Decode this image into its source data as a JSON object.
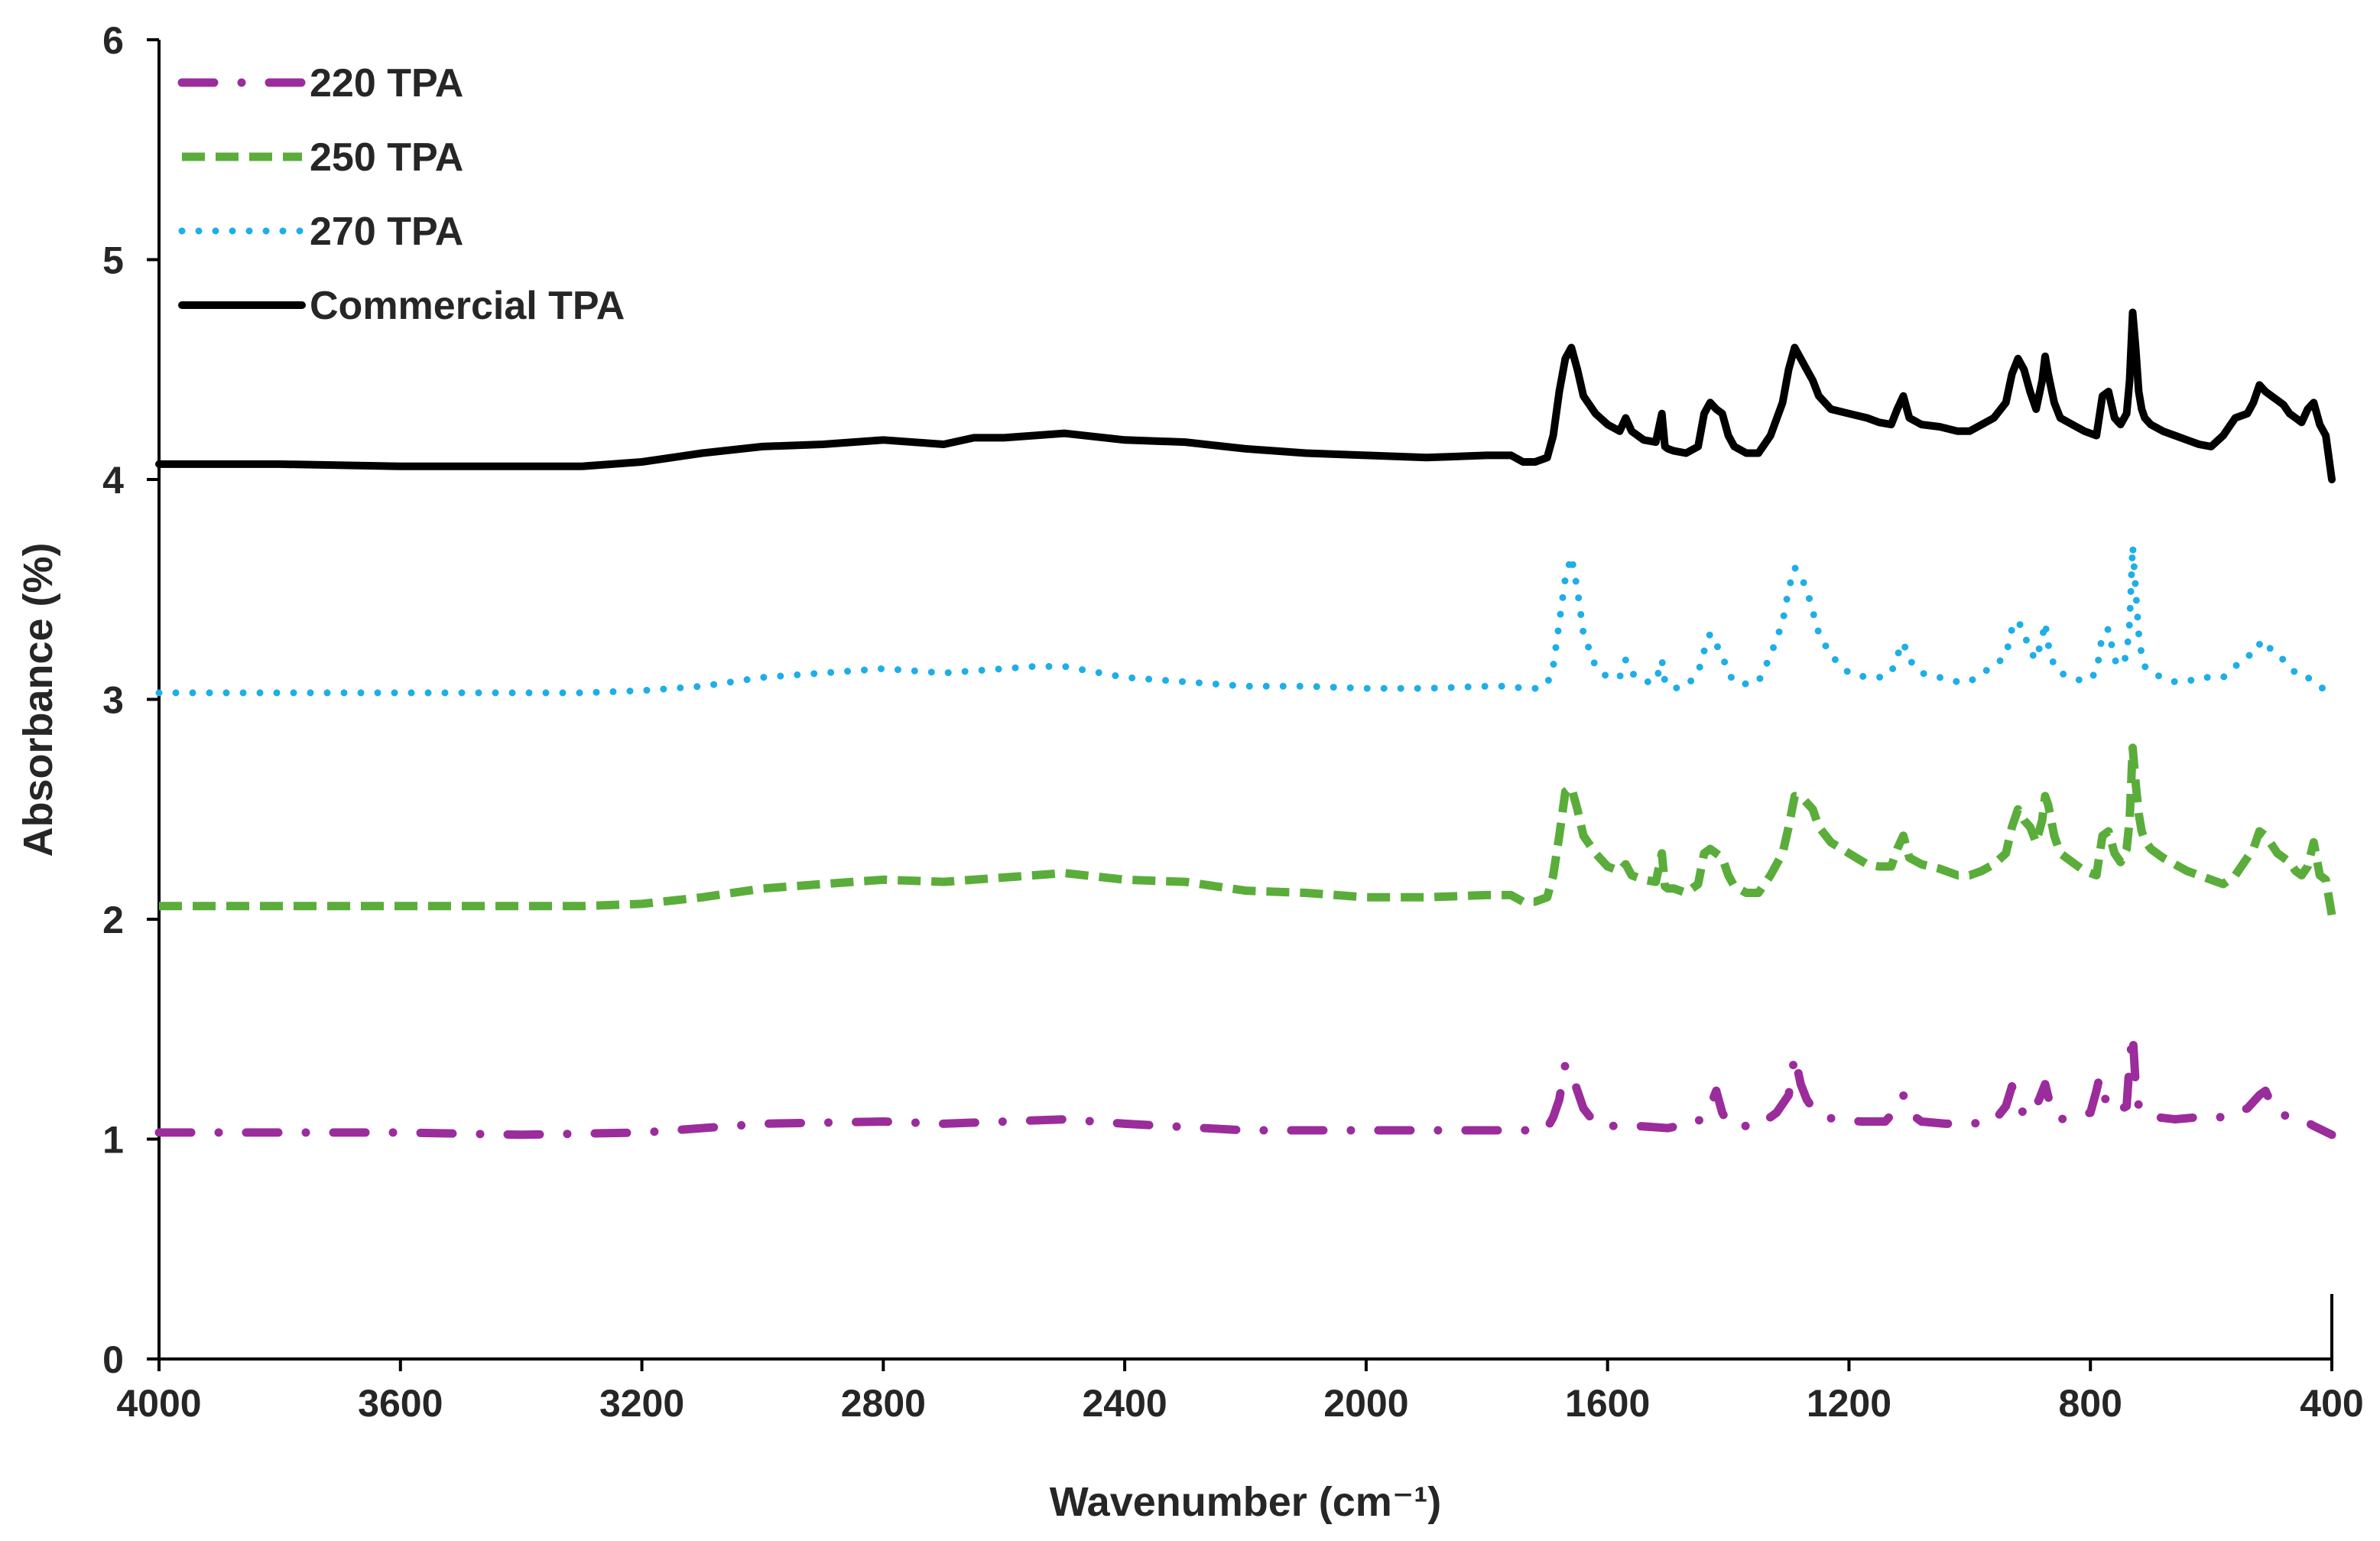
{
  "chart_data": {
    "type": "line",
    "title": "",
    "xlabel": "Wavenumber (cm⁻¹)",
    "ylabel": "Absorbance (%)",
    "xlim": [
      4000,
      400
    ],
    "ylim": [
      0,
      6
    ],
    "x_reversed": true,
    "xticks": [
      "4000",
      "3600",
      "3200",
      "2800",
      "2400",
      "2000",
      "1600",
      "1200",
      "800",
      "400"
    ],
    "xtick_values": [
      4000,
      3600,
      3200,
      2800,
      2400,
      2000,
      1600,
      1200,
      800,
      400
    ],
    "yticks": [
      "0",
      "1",
      "2",
      "3",
      "4",
      "5",
      "6"
    ],
    "ytick_values": [
      0,
      1,
      2,
      3,
      4,
      5,
      6
    ],
    "grid": false,
    "legend_position": "top-left",
    "series": [
      {
        "name": "220 TPA",
        "color": "#9B2C9B",
        "style": "dashdot",
        "x": [
          4000,
          3600,
          3400,
          3200,
          3000,
          2800,
          2700,
          2600,
          2500,
          2400,
          2200,
          2000,
          1800,
          1730,
          1700,
          1690,
          1680,
          1670,
          1660,
          1650,
          1640,
          1620,
          1590,
          1550,
          1500,
          1450,
          1430,
          1420,
          1410,
          1400,
          1380,
          1350,
          1320,
          1300,
          1290,
          1280,
          1270,
          1260,
          1240,
          1220,
          1180,
          1140,
          1120,
          1110,
          1100,
          1080,
          1040,
          1000,
          960,
          940,
          930,
          920,
          900,
          885,
          875,
          865,
          850,
          830,
          800,
          790,
          785,
          775,
          760,
          740,
          735,
          730,
          725,
          720,
          710,
          690,
          660,
          620,
          580,
          560,
          540,
          520,
          510,
          500,
          490,
          470,
          450,
          430,
          400
        ],
        "y": [
          1.03,
          1.03,
          1.02,
          1.03,
          1.07,
          1.08,
          1.07,
          1.08,
          1.09,
          1.07,
          1.04,
          1.04,
          1.04,
          1.04,
          1.05,
          1.1,
          1.18,
          1.34,
          1.3,
          1.22,
          1.14,
          1.07,
          1.06,
          1.06,
          1.05,
          1.08,
          1.15,
          1.22,
          1.12,
          1.07,
          1.06,
          1.06,
          1.12,
          1.2,
          1.38,
          1.25,
          1.18,
          1.14,
          1.1,
          1.09,
          1.08,
          1.08,
          1.14,
          1.2,
          1.12,
          1.08,
          1.07,
          1.07,
          1.08,
          1.15,
          1.24,
          1.14,
          1.1,
          1.18,
          1.25,
          1.14,
          1.09,
          1.1,
          1.12,
          1.22,
          1.28,
          1.18,
          1.12,
          1.15,
          1.35,
          1.48,
          1.25,
          1.15,
          1.12,
          1.1,
          1.09,
          1.1,
          1.1,
          1.12,
          1.14,
          1.2,
          1.22,
          1.16,
          1.12,
          1.1,
          1.09,
          1.06,
          1.02
        ]
      },
      {
        "name": "250 TPA",
        "color": "#5AAD3A",
        "style": "dashed",
        "x": [
          4000,
          3800,
          3600,
          3400,
          3300,
          3200,
          3100,
          3000,
          2900,
          2800,
          2700,
          2600,
          2550,
          2500,
          2400,
          2300,
          2200,
          2100,
          2000,
          1900,
          1800,
          1760,
          1740,
          1720,
          1700,
          1690,
          1680,
          1670,
          1660,
          1650,
          1640,
          1620,
          1600,
          1580,
          1570,
          1560,
          1540,
          1520,
          1510,
          1505,
          1500,
          1490,
          1470,
          1450,
          1440,
          1430,
          1420,
          1410,
          1400,
          1390,
          1370,
          1350,
          1330,
          1310,
          1300,
          1290,
          1280,
          1270,
          1260,
          1250,
          1230,
          1200,
          1170,
          1150,
          1130,
          1120,
          1110,
          1100,
          1080,
          1050,
          1020,
          1000,
          980,
          960,
          940,
          930,
          920,
          910,
          900,
          890,
          880,
          875,
          870,
          860,
          850,
          830,
          810,
          790,
          780,
          770,
          760,
          750,
          740,
          735,
          730,
          725,
          720,
          715,
          710,
          700,
          680,
          660,
          640,
          620,
          600,
          580,
          560,
          540,
          530,
          520,
          510,
          500,
          490,
          480,
          470,
          460,
          450,
          440,
          430,
          420,
          410,
          400
        ],
        "y": [
          2.06,
          2.06,
          2.06,
          2.06,
          2.06,
          2.07,
          2.1,
          2.14,
          2.16,
          2.18,
          2.17,
          2.19,
          2.2,
          2.21,
          2.18,
          2.17,
          2.13,
          2.12,
          2.1,
          2.1,
          2.11,
          2.11,
          2.08,
          2.08,
          2.1,
          2.2,
          2.38,
          2.58,
          2.6,
          2.5,
          2.38,
          2.3,
          2.24,
          2.22,
          2.25,
          2.2,
          2.18,
          2.17,
          2.3,
          2.15,
          2.14,
          2.14,
          2.12,
          2.16,
          2.3,
          2.32,
          2.3,
          2.28,
          2.2,
          2.15,
          2.12,
          2.12,
          2.2,
          2.3,
          2.42,
          2.56,
          2.56,
          2.53,
          2.5,
          2.42,
          2.35,
          2.3,
          2.25,
          2.24,
          2.24,
          2.32,
          2.38,
          2.28,
          2.25,
          2.23,
          2.2,
          2.2,
          2.22,
          2.25,
          2.3,
          2.42,
          2.5,
          2.45,
          2.42,
          2.35,
          2.45,
          2.56,
          2.52,
          2.38,
          2.3,
          2.26,
          2.22,
          2.2,
          2.38,
          2.4,
          2.3,
          2.26,
          2.32,
          2.45,
          2.78,
          2.62,
          2.48,
          2.4,
          2.36,
          2.32,
          2.28,
          2.25,
          2.22,
          2.2,
          2.18,
          2.16,
          2.2,
          2.28,
          2.32,
          2.4,
          2.38,
          2.34,
          2.3,
          2.28,
          2.26,
          2.22,
          2.2,
          2.24,
          2.35,
          2.2,
          2.18,
          2.02
        ]
      },
      {
        "name": "270 TPA",
        "color": "#1EAEE8",
        "style": "dotted",
        "x": [
          4000,
          3800,
          3600,
          3400,
          3300,
          3200,
          3100,
          3000,
          2900,
          2800,
          2700,
          2600,
          2550,
          2500,
          2400,
          2300,
          2200,
          2100,
          2000,
          1900,
          1800,
          1760,
          1740,
          1720,
          1700,
          1690,
          1680,
          1670,
          1660,
          1650,
          1640,
          1620,
          1600,
          1580,
          1570,
          1560,
          1540,
          1520,
          1510,
          1505,
          1500,
          1490,
          1470,
          1450,
          1440,
          1430,
          1420,
          1410,
          1400,
          1390,
          1370,
          1350,
          1330,
          1310,
          1300,
          1290,
          1280,
          1270,
          1260,
          1250,
          1230,
          1200,
          1170,
          1150,
          1130,
          1120,
          1110,
          1100,
          1080,
          1050,
          1020,
          1000,
          980,
          960,
          940,
          930,
          920,
          910,
          900,
          890,
          880,
          875,
          870,
          860,
          850,
          830,
          810,
          790,
          780,
          770,
          760,
          750,
          740,
          735,
          730,
          725,
          720,
          715,
          710,
          700,
          680,
          660,
          640,
          620,
          600,
          580,
          560,
          540,
          530,
          520,
          510,
          500,
          490,
          480,
          470,
          460,
          450,
          440,
          430,
          420,
          410,
          400
        ],
        "y": [
          3.03,
          3.03,
          3.03,
          3.03,
          3.03,
          3.04,
          3.06,
          3.1,
          3.12,
          3.14,
          3.12,
          3.14,
          3.15,
          3.15,
          3.1,
          3.08,
          3.06,
          3.06,
          3.05,
          3.05,
          3.06,
          3.06,
          3.05,
          3.05,
          3.07,
          3.15,
          3.35,
          3.55,
          3.65,
          3.5,
          3.3,
          3.15,
          3.1,
          3.1,
          3.18,
          3.12,
          3.08,
          3.08,
          3.18,
          3.08,
          3.06,
          3.05,
          3.06,
          3.12,
          3.22,
          3.3,
          3.25,
          3.2,
          3.12,
          3.08,
          3.07,
          3.08,
          3.2,
          3.35,
          3.5,
          3.6,
          3.56,
          3.5,
          3.4,
          3.3,
          3.2,
          3.12,
          3.1,
          3.1,
          3.12,
          3.2,
          3.26,
          3.18,
          3.12,
          3.1,
          3.08,
          3.08,
          3.12,
          3.15,
          3.2,
          3.32,
          3.36,
          3.3,
          3.22,
          3.18,
          3.28,
          3.35,
          3.25,
          3.15,
          3.12,
          3.1,
          3.08,
          3.12,
          3.3,
          3.32,
          3.18,
          3.15,
          3.2,
          3.35,
          3.7,
          3.5,
          3.3,
          3.2,
          3.15,
          3.12,
          3.1,
          3.08,
          3.08,
          3.1,
          3.1,
          3.1,
          3.15,
          3.2,
          3.2,
          3.25,
          3.27,
          3.22,
          3.2,
          3.18,
          3.15,
          3.12,
          3.1,
          3.1,
          3.08,
          3.06,
          3.04,
          3.0
        ]
      },
      {
        "name": "Commercial TPA",
        "color": "#000000",
        "style": "solid",
        "x": [
          4000,
          3800,
          3600,
          3400,
          3300,
          3200,
          3100,
          3000,
          2900,
          2800,
          2700,
          2650,
          2600,
          2550,
          2500,
          2400,
          2300,
          2200,
          2100,
          2000,
          1900,
          1800,
          1760,
          1740,
          1720,
          1700,
          1690,
          1680,
          1670,
          1660,
          1650,
          1640,
          1620,
          1600,
          1580,
          1570,
          1560,
          1540,
          1520,
          1510,
          1505,
          1500,
          1490,
          1470,
          1450,
          1440,
          1430,
          1420,
          1410,
          1400,
          1390,
          1370,
          1350,
          1330,
          1310,
          1300,
          1290,
          1280,
          1270,
          1260,
          1250,
          1230,
          1200,
          1170,
          1150,
          1130,
          1120,
          1110,
          1100,
          1080,
          1050,
          1020,
          1000,
          980,
          960,
          940,
          930,
          920,
          910,
          900,
          890,
          880,
          875,
          870,
          860,
          850,
          830,
          810,
          790,
          780,
          770,
          760,
          750,
          740,
          735,
          730,
          725,
          720,
          715,
          710,
          700,
          680,
          660,
          640,
          620,
          600,
          580,
          560,
          540,
          530,
          520,
          510,
          500,
          490,
          480,
          470,
          460,
          450,
          440,
          430,
          420,
          410,
          400
        ],
        "y": [
          4.07,
          4.07,
          4.06,
          4.06,
          4.06,
          4.08,
          4.12,
          4.15,
          4.16,
          4.18,
          4.16,
          4.19,
          4.19,
          4.2,
          4.21,
          4.18,
          4.17,
          4.14,
          4.12,
          4.11,
          4.1,
          4.11,
          4.11,
          4.08,
          4.08,
          4.1,
          4.2,
          4.4,
          4.55,
          4.6,
          4.5,
          4.38,
          4.3,
          4.25,
          4.22,
          4.28,
          4.22,
          4.18,
          4.17,
          4.3,
          4.15,
          4.14,
          4.13,
          4.12,
          4.15,
          4.3,
          4.35,
          4.32,
          4.3,
          4.2,
          4.15,
          4.12,
          4.12,
          4.2,
          4.35,
          4.5,
          4.6,
          4.55,
          4.5,
          4.45,
          4.38,
          4.32,
          4.3,
          4.28,
          4.26,
          4.25,
          4.32,
          4.38,
          4.28,
          4.25,
          4.24,
          4.22,
          4.22,
          4.25,
          4.28,
          4.35,
          4.48,
          4.55,
          4.5,
          4.4,
          4.32,
          4.45,
          4.56,
          4.48,
          4.35,
          4.28,
          4.25,
          4.22,
          4.2,
          4.38,
          4.4,
          4.28,
          4.25,
          4.3,
          4.45,
          4.76,
          4.6,
          4.4,
          4.32,
          4.28,
          4.25,
          4.22,
          4.2,
          4.18,
          4.16,
          4.15,
          4.2,
          4.28,
          4.3,
          4.35,
          4.43,
          4.4,
          4.38,
          4.36,
          4.34,
          4.3,
          4.28,
          4.26,
          4.32,
          4.35,
          4.25,
          4.2,
          4.0
        ]
      }
    ]
  }
}
